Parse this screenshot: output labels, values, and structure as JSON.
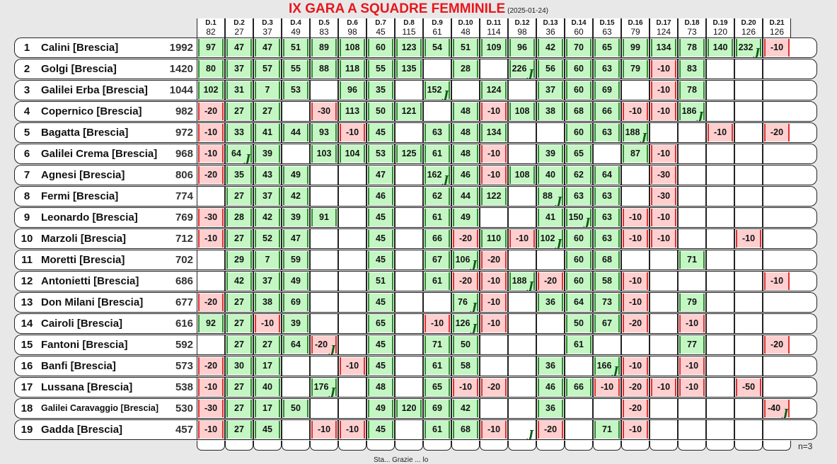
{
  "title": "IX GARA A SQUADRE FEMMINILE",
  "date": "(2025-01-24)",
  "footnote": "n=3",
  "bottom_text": "Sta... Grazie ... lo",
  "questions": [
    {
      "label": "D.1",
      "value": "82"
    },
    {
      "label": "D.2",
      "value": "27"
    },
    {
      "label": "D.3",
      "value": "37"
    },
    {
      "label": "D.4",
      "value": "49"
    },
    {
      "label": "D.5",
      "value": "83"
    },
    {
      "label": "D.6",
      "value": "98"
    },
    {
      "label": "D.7",
      "value": "45"
    },
    {
      "label": "D.8",
      "value": "115"
    },
    {
      "label": "D.9",
      "value": "61"
    },
    {
      "label": "D.10",
      "value": "48"
    },
    {
      "label": "D.11",
      "value": "114"
    },
    {
      "label": "D.12",
      "value": "98"
    },
    {
      "label": "D.13",
      "value": "36"
    },
    {
      "label": "D.14",
      "value": "60"
    },
    {
      "label": "D.15",
      "value": "63"
    },
    {
      "label": "D.16",
      "value": "79"
    },
    {
      "label": "D.17",
      "value": "124"
    },
    {
      "label": "D.18",
      "value": "73"
    },
    {
      "label": "D.19",
      "value": "120"
    },
    {
      "label": "D.20",
      "value": "126"
    },
    {
      "label": "D.21",
      "value": "126"
    }
  ],
  "joker_glyph": "J",
  "teams": [
    {
      "rank": "1",
      "name": "Calini [Brescia]",
      "score": "1992",
      "cells": [
        "97",
        "47",
        "47",
        "51",
        "89",
        "108",
        "60",
        "123",
        "54",
        "51",
        "109",
        "96",
        "42",
        "70",
        "65",
        "99",
        "134",
        "78",
        "140",
        "232J",
        "-10"
      ]
    },
    {
      "rank": "2",
      "name": "Golgi [Brescia]",
      "score": "1420",
      "cells": [
        "80",
        "37",
        "57",
        "55",
        "88",
        "118",
        "55",
        "135",
        "",
        "28",
        "",
        "226J",
        "56",
        "60",
        "63",
        "79",
        "-10",
        "83",
        "",
        "",
        ""
      ]
    },
    {
      "rank": "3",
      "name": "Galilei Erba [Brescia]",
      "score": "1044",
      "cells": [
        "102",
        "31",
        "7",
        "53",
        "",
        "96",
        "35",
        "",
        "152J",
        "",
        "124",
        "",
        "37",
        "60",
        "69",
        "",
        "-10",
        "78",
        "",
        "",
        ""
      ]
    },
    {
      "rank": "4",
      "name": "Copernico [Brescia]",
      "score": "982",
      "cells": [
        "-20",
        "27",
        "27",
        "",
        "-30",
        "113",
        "50",
        "121",
        "",
        "48",
        "-10",
        "108",
        "38",
        "68",
        "66",
        "-10",
        "-10",
        "186J",
        "",
        "",
        ""
      ]
    },
    {
      "rank": "5",
      "name": "Bagatta [Brescia]",
      "score": "972",
      "cells": [
        "-10",
        "33",
        "41",
        "44",
        "93",
        "-10",
        "45",
        "",
        "63",
        "48",
        "134",
        "",
        "",
        "60",
        "63",
        "188J",
        "",
        "",
        "-10",
        "",
        "-20"
      ]
    },
    {
      "rank": "6",
      "name": "Galilei Crema [Brescia]",
      "score": "968",
      "cells": [
        "-10",
        "64J",
        "39",
        "",
        "103",
        "104",
        "53",
        "125",
        "61",
        "48",
        "-10",
        "",
        "39",
        "65",
        "",
        "87",
        "-10",
        "",
        "",
        "",
        ""
      ]
    },
    {
      "rank": "7",
      "name": "Agnesi [Brescia]",
      "score": "806",
      "cells": [
        "-20",
        "35",
        "43",
        "49",
        "",
        "",
        "47",
        "",
        "162J",
        "46",
        "-10",
        "108",
        "40",
        "62",
        "64",
        "",
        "-30",
        "",
        "",
        "",
        ""
      ]
    },
    {
      "rank": "8",
      "name": "Fermi [Brescia]",
      "score": "774",
      "cells": [
        "",
        "27",
        "37",
        "42",
        "",
        "",
        "46",
        "",
        "62",
        "44",
        "122",
        "",
        "88J",
        "63",
        "63",
        "",
        "-30",
        "",
        "",
        "",
        ""
      ]
    },
    {
      "rank": "9",
      "name": "Leonardo [Brescia]",
      "score": "769",
      "cells": [
        "-30",
        "28",
        "42",
        "39",
        "91",
        "",
        "45",
        "",
        "61",
        "49",
        "",
        "",
        "41",
        "150J",
        "63",
        "-10",
        "-10",
        "",
        "",
        "",
        ""
      ]
    },
    {
      "rank": "10",
      "name": "Marzoli [Brescia]",
      "score": "712",
      "cells": [
        "-10",
        "27",
        "52",
        "47",
        "",
        "",
        "45",
        "",
        "66",
        "-20",
        "110",
        "-10",
        "102J",
        "60",
        "63",
        "-10",
        "-10",
        "",
        "",
        "-10",
        ""
      ]
    },
    {
      "rank": "11",
      "name": "Moretti [Brescia]",
      "score": "702",
      "cells": [
        "",
        "29",
        "7",
        "59",
        "",
        "",
        "45",
        "",
        "67",
        "106J",
        "-20",
        "",
        "",
        "60",
        "68",
        "",
        "",
        "71",
        "",
        "",
        ""
      ]
    },
    {
      "rank": "12",
      "name": "Antonietti [Brescia]",
      "score": "686",
      "cells": [
        "",
        "42",
        "37",
        "49",
        "",
        "",
        "51",
        "",
        "61",
        "-20",
        "-10",
        "188J",
        "-20",
        "60",
        "58",
        "-10",
        "",
        "",
        "",
        "",
        "-10"
      ]
    },
    {
      "rank": "13",
      "name": "Don Milani [Brescia]",
      "score": "677",
      "cells": [
        "-20",
        "27",
        "38",
        "69",
        "",
        "",
        "45",
        "",
        "",
        "76J",
        "-10",
        "",
        "36",
        "64",
        "73",
        "-10",
        "",
        "79",
        "",
        "",
        ""
      ]
    },
    {
      "rank": "14",
      "name": "Cairoli [Brescia]",
      "score": "616",
      "cells": [
        "92",
        "27",
        "-10",
        "39",
        "",
        "",
        "65",
        "",
        "-10",
        "126J",
        "-10",
        "",
        "",
        "50",
        "67",
        "-20",
        "",
        "-10",
        "",
        "",
        ""
      ]
    },
    {
      "rank": "15",
      "name": "Fantoni [Brescia]",
      "score": "592",
      "cells": [
        "",
        "27",
        "27",
        "64",
        "-20J",
        "",
        "45",
        "",
        "71",
        "50",
        "",
        "",
        "",
        "61",
        "",
        "",
        "",
        "77",
        "",
        "",
        "-20"
      ]
    },
    {
      "rank": "16",
      "name": "Banfi [Brescia]",
      "score": "573",
      "cells": [
        "-20",
        "30",
        "17",
        "",
        "",
        "-10",
        "45",
        "",
        "61",
        "58",
        "",
        "",
        "36",
        "",
        "166J",
        "-10",
        "",
        "-10",
        "",
        "",
        ""
      ]
    },
    {
      "rank": "17",
      "name": "Lussana [Brescia]",
      "score": "538",
      "cells": [
        "-10",
        "27",
        "40",
        "",
        "176J",
        "",
        "48",
        "",
        "65",
        "-10",
        "-20",
        "",
        "46",
        "66",
        "-10",
        "-20",
        "-10",
        "-10",
        "",
        "-50",
        ""
      ]
    },
    {
      "rank": "18",
      "name": "Galilei Caravaggio [Brescia]",
      "score": "530",
      "small": true,
      "cells": [
        "-30",
        "27",
        "17",
        "50",
        "",
        "",
        "49",
        "120",
        "69",
        "42",
        "",
        "",
        "36",
        "",
        "",
        "-20",
        "",
        "",
        "",
        "",
        "-40J"
      ]
    },
    {
      "rank": "19",
      "name": "Gadda [Brescia]",
      "score": "457",
      "cells": [
        "-10",
        "27",
        "45",
        "",
        "-10",
        "-10",
        "45",
        "",
        "61",
        "68",
        "-10",
        "J",
        "-20",
        "",
        "71",
        "-10",
        "",
        "",
        "",
        "",
        ""
      ]
    }
  ]
}
